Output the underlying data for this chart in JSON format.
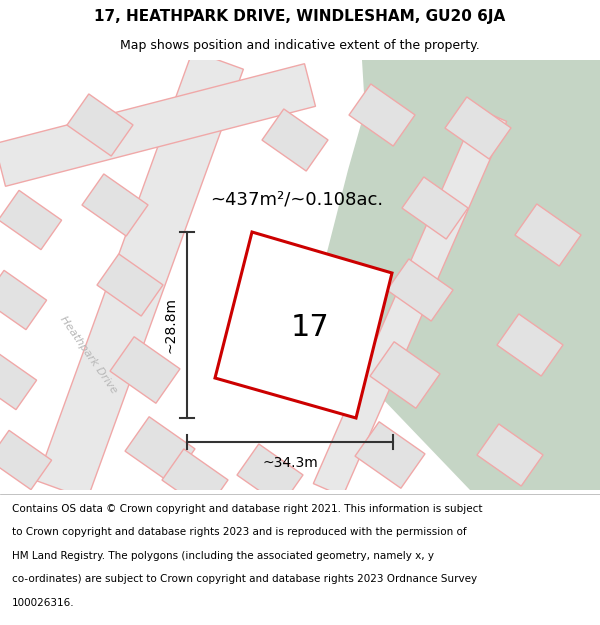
{
  "title": "17, HEATHPARK DRIVE, WINDLESHAM, GU20 6JA",
  "subtitle": "Map shows position and indicative extent of the property.",
  "footer_lines": [
    "Contains OS data © Crown copyright and database right 2021. This information is subject",
    "to Crown copyright and database rights 2023 and is reproduced with the permission of",
    "HM Land Registry. The polygons (including the associated geometry, namely x, y",
    "co-ordinates) are subject to Crown copyright and database rights 2023 Ordnance Survey",
    "100026316."
  ],
  "area_label": "~437m²/~0.108ac.",
  "number_label": "17",
  "dim_h_label": "~28.8m",
  "dim_w_label": "~34.3m",
  "road_label": "Heathpark Drive",
  "bg_color": "#efefef",
  "green_color": "#c5d5c5",
  "plot_fill": "#ffffff",
  "plot_border": "#cc0000",
  "road_fill": "#e8e8e8",
  "road_border": "#f0a8a8",
  "building_fill": "#e2e2e2",
  "building_border": "#f0a8a8",
  "dim_color": "#333333",
  "title_fs": 11,
  "subtitle_fs": 9,
  "area_fs": 13,
  "number_fs": 22,
  "dim_fs": 10,
  "road_label_fs": 8,
  "footer_fs": 7.5
}
